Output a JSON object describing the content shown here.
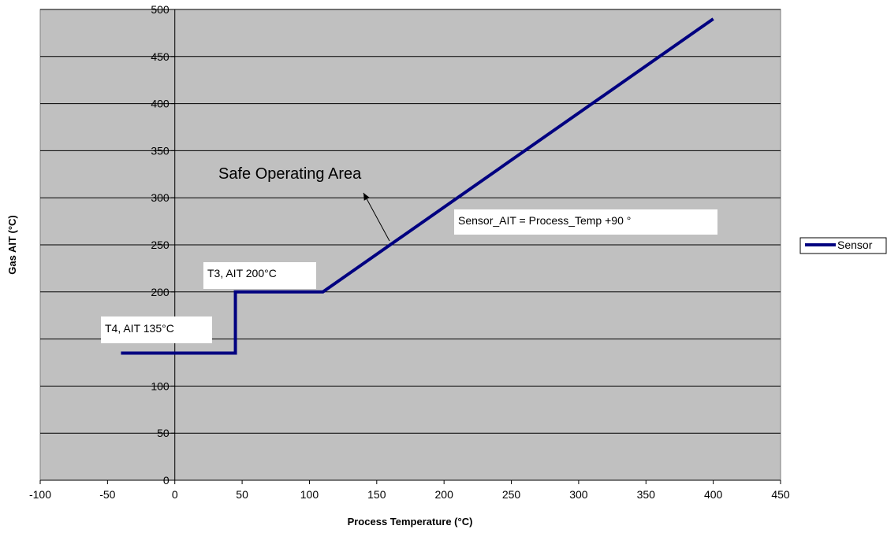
{
  "chart_data": {
    "type": "line",
    "xlabel": "Process Temperature (°C)",
    "ylabel": "Gas AIT (°C)",
    "xlim": [
      -100,
      450
    ],
    "ylim": [
      0,
      500
    ],
    "x_ticks": [
      -100,
      -50,
      0,
      50,
      100,
      150,
      200,
      250,
      300,
      350,
      400,
      450
    ],
    "y_ticks": [
      0,
      50,
      100,
      150,
      200,
      250,
      300,
      350,
      400,
      450,
      500
    ],
    "y_tick_labels": [
      "0",
      "50",
      "100",
      "",
      "200",
      "250",
      "300",
      "350",
      "400",
      "450",
      "500"
    ],
    "grid": "horizontal",
    "plot_background": "#c0c0c0",
    "legend_position": "right",
    "series": [
      {
        "name": "Sensor",
        "color": "#000080",
        "x": [
          -40,
          45,
          45,
          110,
          400
        ],
        "y": [
          135,
          135,
          200,
          200,
          490
        ]
      }
    ],
    "annotations": [
      {
        "text": "T4, AIT 135°C",
        "style": "boxed"
      },
      {
        "text": "T3, AIT 200°C",
        "style": "boxed"
      },
      {
        "text": "Sensor_AIT = Process_Temp +90 °",
        "style": "boxed"
      },
      {
        "text": "Safe Operating Area",
        "style": "large"
      }
    ]
  }
}
